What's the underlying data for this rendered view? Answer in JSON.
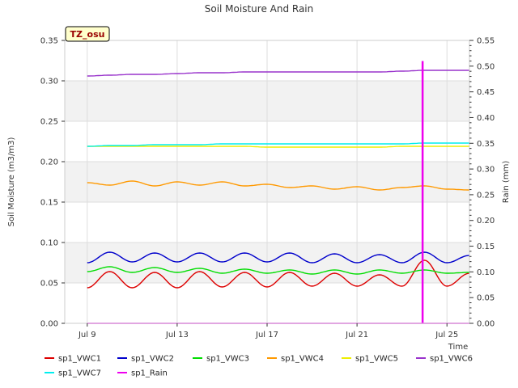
{
  "chart_data": {
    "type": "line",
    "title": "Soil Moisture And Rain",
    "badge": "TZ_osu",
    "xlabel": "Time",
    "ylabel": "Soil Moisture (m3/m3)",
    "y2label": "Rain (mm)",
    "xlim": [
      "2024-07-08",
      "2024-07-26"
    ],
    "ylim": [
      0,
      0.35
    ],
    "y2lim": [
      0,
      0.55
    ],
    "x_ticks": [
      {
        "date": "2024-07-09",
        "label": "Jul 9"
      },
      {
        "date": "2024-07-13",
        "label": "Jul 13"
      },
      {
        "date": "2024-07-17",
        "label": "Jul 17"
      },
      {
        "date": "2024-07-21",
        "label": "Jul 21"
      },
      {
        "date": "2024-07-25",
        "label": "Jul 25"
      }
    ],
    "y_ticks": [
      "0.00",
      "0.05",
      "0.10",
      "0.15",
      "0.20",
      "0.25",
      "0.30",
      "0.35"
    ],
    "y2_ticks": [
      "0.00",
      "0.05",
      "0.10",
      "0.15",
      "0.20",
      "0.25",
      "0.30",
      "0.35",
      "0.40",
      "0.45",
      "0.50",
      "0.55"
    ],
    "grid": true,
    "legend_position": "bottom",
    "x_dates": [
      "2024-07-09",
      "2024-07-10",
      "2024-07-11",
      "2024-07-12",
      "2024-07-13",
      "2024-07-14",
      "2024-07-15",
      "2024-07-16",
      "2024-07-17",
      "2024-07-18",
      "2024-07-19",
      "2024-07-20",
      "2024-07-21",
      "2024-07-22",
      "2024-07-23",
      "2024-07-24",
      "2024-07-25",
      "2024-07-26"
    ],
    "series": [
      {
        "name": "sp1_VWC1",
        "color": "#dd0000",
        "axis": "left",
        "values": [
          0.044,
          0.064,
          0.044,
          0.063,
          0.044,
          0.064,
          0.045,
          0.063,
          0.045,
          0.063,
          0.046,
          0.062,
          0.046,
          0.06,
          0.046,
          0.078,
          0.046,
          0.062
        ]
      },
      {
        "name": "sp1_VWC2",
        "color": "#0000cc",
        "axis": "left",
        "values": [
          0.075,
          0.088,
          0.076,
          0.087,
          0.076,
          0.087,
          0.076,
          0.087,
          0.076,
          0.087,
          0.075,
          0.086,
          0.075,
          0.085,
          0.075,
          0.088,
          0.075,
          0.084
        ]
      },
      {
        "name": "sp1_VWC3",
        "color": "#00dd00",
        "axis": "left",
        "values": [
          0.064,
          0.07,
          0.063,
          0.069,
          0.063,
          0.068,
          0.062,
          0.067,
          0.062,
          0.066,
          0.061,
          0.066,
          0.061,
          0.066,
          0.062,
          0.066,
          0.062,
          0.063
        ]
      },
      {
        "name": "sp1_VWC4",
        "color": "#ff9900",
        "axis": "left",
        "values": [
          0.174,
          0.171,
          0.176,
          0.17,
          0.175,
          0.171,
          0.175,
          0.17,
          0.172,
          0.168,
          0.17,
          0.166,
          0.169,
          0.165,
          0.168,
          0.17,
          0.166,
          0.165
        ]
      },
      {
        "name": "sp1_VWC5",
        "color": "#eeee00",
        "axis": "left",
        "values": [
          0.219,
          0.219,
          0.219,
          0.219,
          0.219,
          0.219,
          0.219,
          0.219,
          0.218,
          0.218,
          0.218,
          0.218,
          0.218,
          0.218,
          0.219,
          0.219,
          0.219,
          0.219
        ]
      },
      {
        "name": "sp1_VWC6",
        "color": "#9933cc",
        "axis": "left",
        "values": [
          0.306,
          0.307,
          0.308,
          0.308,
          0.309,
          0.31,
          0.31,
          0.311,
          0.311,
          0.311,
          0.311,
          0.311,
          0.311,
          0.311,
          0.312,
          0.313,
          0.313,
          0.313
        ]
      },
      {
        "name": "sp1_VWC7",
        "color": "#00eeee",
        "axis": "left",
        "values": [
          0.219,
          0.22,
          0.22,
          0.221,
          0.221,
          0.221,
          0.222,
          0.222,
          0.222,
          0.222,
          0.222,
          0.222,
          0.222,
          0.222,
          0.222,
          0.223,
          0.223,
          0.223
        ]
      },
      {
        "name": "sp1_Rain",
        "color": "#ee00ee",
        "axis": "right",
        "events": [
          {
            "date": "2024-07-23T22:00",
            "value": 0.51
          }
        ]
      }
    ]
  }
}
